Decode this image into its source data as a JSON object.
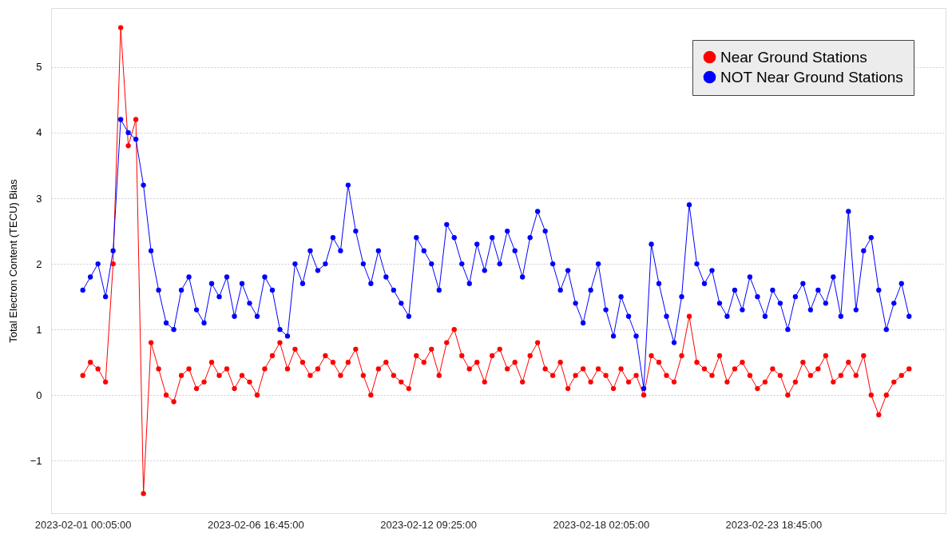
{
  "chart_data": {
    "type": "line",
    "ylabel": "Total Electron Content (TECU) Bias",
    "x": [
      "2023-02-01T00:05",
      "2023-02-01T06:05",
      "2023-02-01T12:05",
      "2023-02-01T18:05",
      "2023-02-02T00:05",
      "2023-02-02T06:05",
      "2023-02-02T12:05",
      "2023-02-02T18:05",
      "2023-02-03T00:05",
      "2023-02-03T06:05",
      "2023-02-03T12:05",
      "2023-02-03T18:05",
      "2023-02-04T00:05",
      "2023-02-04T06:05",
      "2023-02-04T12:05",
      "2023-02-04T18:05",
      "2023-02-05T00:05",
      "2023-02-05T06:05",
      "2023-02-05T12:05",
      "2023-02-05T18:05",
      "2023-02-06T00:05",
      "2023-02-06T06:05",
      "2023-02-06T12:05",
      "2023-02-06T18:05",
      "2023-02-07T00:05",
      "2023-02-07T06:05",
      "2023-02-07T12:05",
      "2023-02-07T18:05",
      "2023-02-08T00:05",
      "2023-02-08T06:05",
      "2023-02-08T12:05",
      "2023-02-08T18:05",
      "2023-02-09T00:05",
      "2023-02-09T06:05",
      "2023-02-09T12:05",
      "2023-02-09T18:05",
      "2023-02-10T00:05",
      "2023-02-10T06:05",
      "2023-02-10T12:05",
      "2023-02-10T18:05",
      "2023-02-11T00:05",
      "2023-02-11T06:05",
      "2023-02-11T12:05",
      "2023-02-11T18:05",
      "2023-02-12T00:05",
      "2023-02-12T06:05",
      "2023-02-12T12:05",
      "2023-02-12T18:05",
      "2023-02-13T00:05",
      "2023-02-13T06:05",
      "2023-02-13T12:05",
      "2023-02-13T18:05",
      "2023-02-14T00:05",
      "2023-02-14T06:05",
      "2023-02-14T12:05",
      "2023-02-14T18:05",
      "2023-02-15T00:05",
      "2023-02-15T06:05",
      "2023-02-15T12:05",
      "2023-02-15T18:05",
      "2023-02-16T00:05",
      "2023-02-16T06:05",
      "2023-02-16T12:05",
      "2023-02-16T18:05",
      "2023-02-17T00:05",
      "2023-02-17T06:05",
      "2023-02-17T12:05",
      "2023-02-17T18:05",
      "2023-02-18T00:05",
      "2023-02-18T06:05",
      "2023-02-18T12:05",
      "2023-02-18T18:05",
      "2023-02-19T00:05",
      "2023-02-19T06:05",
      "2023-02-19T12:05",
      "2023-02-19T18:05",
      "2023-02-20T00:05",
      "2023-02-20T06:05",
      "2023-02-20T12:05",
      "2023-02-20T18:05",
      "2023-02-21T00:05",
      "2023-02-21T06:05",
      "2023-02-21T12:05",
      "2023-02-21T18:05",
      "2023-02-22T00:05",
      "2023-02-22T06:05",
      "2023-02-22T12:05",
      "2023-02-22T18:05",
      "2023-02-23T00:05",
      "2023-02-23T06:05",
      "2023-02-23T12:05",
      "2023-02-23T18:05",
      "2023-02-24T00:05",
      "2023-02-24T06:05",
      "2023-02-24T12:05",
      "2023-02-24T18:05",
      "2023-02-25T00:05",
      "2023-02-25T06:05",
      "2023-02-25T12:05",
      "2023-02-25T18:05",
      "2023-02-26T00:05",
      "2023-02-26T06:05",
      "2023-02-26T12:05",
      "2023-02-26T18:05",
      "2023-02-27T00:05",
      "2023-02-27T06:05",
      "2023-02-27T12:05",
      "2023-02-27T18:05",
      "2023-02-28T00:05",
      "2023-02-28T06:05"
    ],
    "series": [
      {
        "name": "Near Ground Stations",
        "color": "#ff0000",
        "values": [
          0.3,
          0.5,
          0.4,
          0.2,
          2.0,
          5.6,
          3.8,
          4.2,
          -1.5,
          0.8,
          0.4,
          0.0,
          -0.1,
          0.3,
          0.4,
          0.1,
          0.2,
          0.5,
          0.3,
          0.4,
          0.1,
          0.3,
          0.2,
          0.0,
          0.4,
          0.6,
          0.8,
          0.4,
          0.7,
          0.5,
          0.3,
          0.4,
          0.6,
          0.5,
          0.3,
          0.5,
          0.7,
          0.3,
          0.0,
          0.4,
          0.5,
          0.3,
          0.2,
          0.1,
          0.6,
          0.5,
          0.7,
          0.3,
          0.8,
          1.0,
          0.6,
          0.4,
          0.5,
          0.2,
          0.6,
          0.7,
          0.4,
          0.5,
          0.2,
          0.6,
          0.8,
          0.4,
          0.3,
          0.5,
          0.1,
          0.3,
          0.4,
          0.2,
          0.4,
          0.3,
          0.1,
          0.4,
          0.2,
          0.3,
          0.0,
          0.6,
          0.5,
          0.3,
          0.2,
          0.6,
          1.2,
          0.5,
          0.4,
          0.3,
          0.6,
          0.2,
          0.4,
          0.5,
          0.3,
          0.1,
          0.2,
          0.4,
          0.3,
          0.0,
          0.2,
          0.5,
          0.3,
          0.4,
          0.6,
          0.2,
          0.3,
          0.5,
          0.3,
          0.6,
          0.0,
          -0.3,
          0.0,
          0.2,
          0.3,
          0.4
        ]
      },
      {
        "name": "NOT Near Ground Stations",
        "color": "#0000ff",
        "values": [
          1.6,
          1.8,
          2.0,
          1.5,
          2.2,
          4.2,
          4.0,
          3.9,
          3.2,
          2.2,
          1.6,
          1.1,
          1.0,
          1.6,
          1.8,
          1.3,
          1.1,
          1.7,
          1.5,
          1.8,
          1.2,
          1.7,
          1.4,
          1.2,
          1.8,
          1.6,
          1.0,
          0.9,
          2.0,
          1.7,
          2.2,
          1.9,
          2.0,
          2.4,
          2.2,
          3.2,
          2.5,
          2.0,
          1.7,
          2.2,
          1.8,
          1.6,
          1.4,
          1.2,
          2.4,
          2.2,
          2.0,
          1.6,
          2.6,
          2.4,
          2.0,
          1.7,
          2.3,
          1.9,
          2.4,
          2.0,
          2.5,
          2.2,
          1.8,
          2.4,
          2.8,
          2.5,
          2.0,
          1.6,
          1.9,
          1.4,
          1.1,
          1.6,
          2.0,
          1.3,
          0.9,
          1.5,
          1.2,
          0.9,
          0.1,
          2.3,
          1.7,
          1.2,
          0.8,
          1.5,
          2.9,
          2.0,
          1.7,
          1.9,
          1.4,
          1.2,
          1.6,
          1.3,
          1.8,
          1.5,
          1.2,
          1.6,
          1.4,
          1.0,
          1.5,
          1.7,
          1.3,
          1.6,
          1.4,
          1.8,
          1.2,
          2.8,
          1.3,
          2.2,
          2.4,
          1.6,
          1.0,
          1.4,
          1.7,
          1.2
        ]
      }
    ],
    "xlim": [
      "2023-01-30T23:00",
      "2023-03-01T11:00"
    ],
    "xticks": [
      {
        "value": "2023-02-01T00:05",
        "label": "2023-02-01 00:05:00"
      },
      {
        "value": "2023-02-06T16:45",
        "label": "2023-02-06 16:45:00"
      },
      {
        "value": "2023-02-12T09:25",
        "label": "2023-02-12 09:25:00"
      },
      {
        "value": "2023-02-18T02:05",
        "label": "2023-02-18 02:05:00"
      },
      {
        "value": "2023-02-23T18:45",
        "label": "2023-02-23 18:45:00"
      }
    ],
    "ylim": [
      -1.8,
      5.9
    ],
    "yticks": [
      -1,
      0,
      1,
      2,
      3,
      4,
      5
    ],
    "grid": "y",
    "legend": "top right",
    "marker": "circle",
    "line_style": "solid"
  }
}
